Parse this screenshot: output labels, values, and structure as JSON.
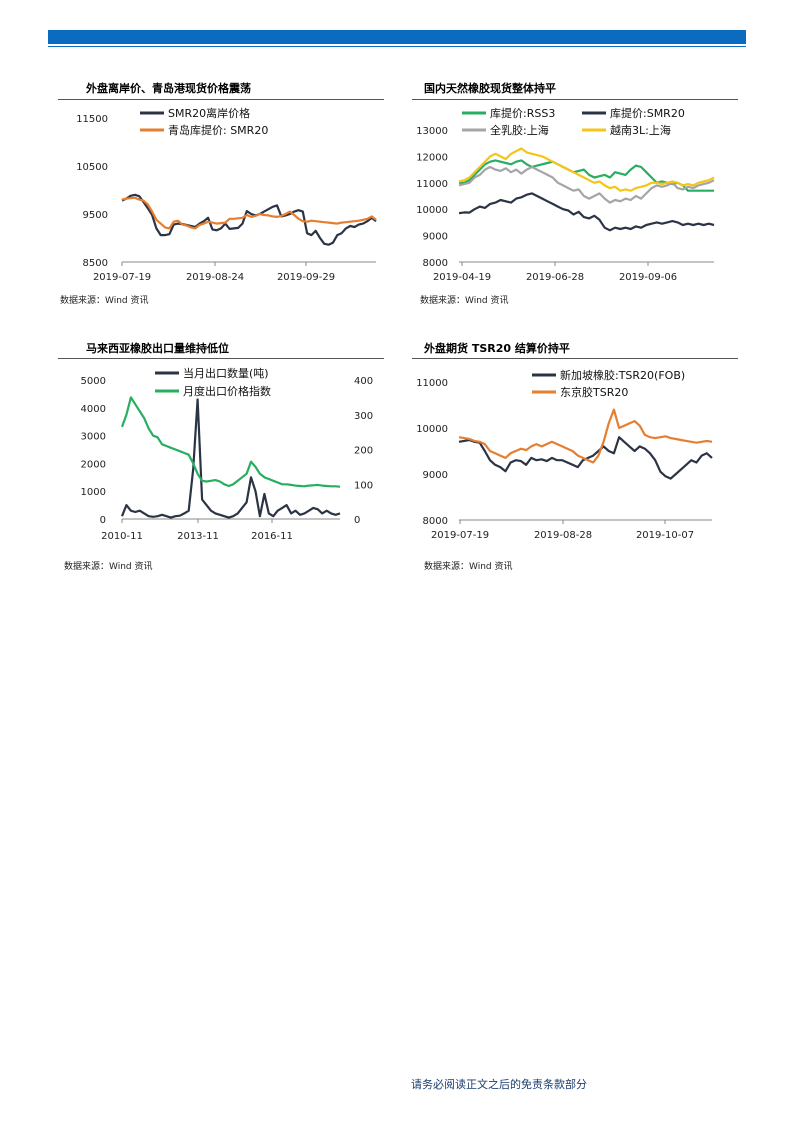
{
  "footer": "请务必阅读正文之后的免责条款部分",
  "panels": [
    {
      "title": "外盘离岸价、青岛港现货价格震荡",
      "source": "数据来源：Wind 资讯",
      "chart_data": {
        "type": "line",
        "x_ticks": [
          "2019-07-19",
          "2019-08-24",
          "2019-09-29"
        ],
        "ylim": [
          8500,
          11500
        ],
        "y_ticks": [
          8500,
          9500,
          10500,
          11500
        ],
        "legend_position": "top-left",
        "series": [
          {
            "name": "SMR20离岸价格",
            "color": "#2b3445",
            "values": [
              9780,
              9820,
              9880,
              9900,
              9870,
              9750,
              9620,
              9480,
              9200,
              9060,
              9060,
              9080,
              9280,
              9300,
              9290,
              9270,
              9250,
              9230,
              9300,
              9350,
              9420,
              9180,
              9160,
              9200,
              9300,
              9190,
              9200,
              9210,
              9300,
              9560,
              9500,
              9470,
              9500,
              9550,
              9600,
              9650,
              9680,
              9450,
              9470,
              9500,
              9550,
              9580,
              9550,
              9100,
              9060,
              9150,
              9000,
              8880,
              8860,
              8900,
              9060,
              9100,
              9200,
              9250,
              9230,
              9280,
              9300,
              9350,
              9420,
              9350
            ]
          },
          {
            "name": "青岛库提价: SMR20",
            "color": "#e67e30",
            "values": [
              9800,
              9820,
              9830,
              9840,
              9800,
              9780,
              9700,
              9550,
              9380,
              9300,
              9220,
              9200,
              9340,
              9360,
              9280,
              9260,
              9220,
              9200,
              9270,
              9300,
              9340,
              9320,
              9300,
              9310,
              9320,
              9400,
              9400,
              9410,
              9420,
              9480,
              9440,
              9460,
              9500,
              9480,
              9470,
              9450,
              9440,
              9460,
              9500,
              9550,
              9480,
              9400,
              9350,
              9340,
              9360,
              9350,
              9340,
              9330,
              9320,
              9310,
              9300,
              9320,
              9330,
              9340,
              9350,
              9360,
              9380,
              9400,
              9450,
              9380
            ]
          }
        ]
      }
    },
    {
      "title": "国内天然橡胶现货整体持平",
      "source": "数据来源：Wind 资讯",
      "chart_data": {
        "type": "line",
        "x_ticks": [
          "2019-04-19",
          "2019-06-28",
          "2019-09-06"
        ],
        "ylim": [
          8000,
          13000
        ],
        "y_ticks": [
          8000,
          9000,
          10000,
          11000,
          12000,
          13000
        ],
        "legend_position": "top",
        "series": [
          {
            "name": "库提价:RSS3",
            "color": "#27ae60",
            "values": [
              11000,
              11000,
              11100,
              11300,
              11500,
              11700,
              11800,
              11850,
              11800,
              11750,
              11700,
              11800,
              11850,
              11700,
              11600,
              11650,
              11700,
              11750,
              11800,
              11700,
              11600,
              11500,
              11400,
              11450,
              11500,
              11300,
              11200,
              11250,
              11300,
              11200,
              11400,
              11350,
              11300,
              11500,
              11650,
              11600,
              11400,
              11200,
              11000,
              11050,
              11000,
              10950,
              11000,
              10900,
              10700,
              10700,
              10700,
              10700,
              10700,
              10700
            ]
          },
          {
            "name": "库提价:SMR20",
            "color": "#2b3445",
            "values": [
              9850,
              9880,
              9870,
              10000,
              10100,
              10050,
              10200,
              10250,
              10350,
              10300,
              10250,
              10400,
              10450,
              10550,
              10600,
              10500,
              10400,
              10300,
              10200,
              10100,
              10000,
              9950,
              9800,
              9900,
              9700,
              9650,
              9750,
              9600,
              9300,
              9200,
              9300,
              9250,
              9300,
              9250,
              9350,
              9300,
              9400,
              9450,
              9500,
              9450,
              9500,
              9550,
              9500,
              9400,
              9450,
              9400,
              9450,
              9400,
              9450,
              9400
            ]
          },
          {
            "name": "全乳胶:上海",
            "color": "#a5a5a5",
            "values": [
              10900,
              10950,
              11000,
              11200,
              11300,
              11500,
              11600,
              11500,
              11450,
              11550,
              11400,
              11500,
              11350,
              11500,
              11600,
              11500,
              11400,
              11300,
              11200,
              11000,
              10900,
              10800,
              10700,
              10750,
              10500,
              10400,
              10500,
              10600,
              10400,
              10250,
              10350,
              10300,
              10400,
              10350,
              10500,
              10400,
              10600,
              10800,
              10900,
              10850,
              10900,
              11000,
              10800,
              10750,
              10850,
              10800,
              10900,
              10950,
              11000,
              11100
            ]
          },
          {
            "name": "越南3L:上海",
            "color": "#f5c518",
            "values": [
              11050,
              11100,
              11200,
              11400,
              11600,
              11800,
              12000,
              12100,
              12000,
              11900,
              12100,
              12200,
              12300,
              12150,
              12100,
              12050,
              12000,
              11900,
              11800,
              11700,
              11600,
              11500,
              11400,
              11300,
              11200,
              11100,
              11000,
              11050,
              10900,
              10800,
              10850,
              10700,
              10750,
              10700,
              10800,
              10850,
              10900,
              11000,
              11000,
              10950,
              11000,
              11050,
              11000,
              10900,
              10950,
              10900,
              11000,
              11050,
              11100,
              11200
            ]
          }
        ]
      }
    },
    {
      "title": "马来西亚橡胶出口量维持低位",
      "source": "数据来源：Wind 资讯",
      "chart_data": {
        "type": "line",
        "x_ticks": [
          "2010-11",
          "2013-11",
          "2016-11"
        ],
        "ylim": [
          0,
          5000
        ],
        "y_ticks": [
          0,
          1000,
          2000,
          3000,
          4000,
          5000
        ],
        "y2lim": [
          0,
          400
        ],
        "y2_ticks": [
          0,
          100,
          200,
          300,
          400
        ],
        "legend_position": "top",
        "series": [
          {
            "name": "当月出口数量(吨)",
            "color": "#2b3445",
            "axis": "left",
            "values": [
              100,
              500,
              300,
              250,
              300,
              200,
              100,
              80,
              100,
              150,
              100,
              50,
              100,
              120,
              200,
              300,
              1800,
              4300,
              700,
              500,
              300,
              200,
              150,
              100,
              50,
              100,
              200,
              400,
              600,
              1500,
              1000,
              100,
              900,
              200,
              100,
              300,
              400,
              500,
              200,
              300,
              150,
              200,
              300,
              400,
              350,
              200,
              300,
              200,
              150,
              200
            ]
          },
          {
            "name": "月度出口价格指数",
            "color": "#27ae60",
            "axis": "right",
            "values": [
              265,
              300,
              350,
              330,
              310,
              290,
              260,
              240,
              235,
              215,
              210,
              205,
              200,
              195,
              190,
              185,
              160,
              130,
              110,
              108,
              110,
              112,
              108,
              100,
              95,
              100,
              110,
              120,
              130,
              165,
              150,
              130,
              120,
              115,
              110,
              105,
              100,
              100,
              98,
              96,
              95,
              94,
              96,
              97,
              98,
              96,
              95,
              94,
              94,
              93
            ]
          }
        ]
      }
    },
    {
      "title": "外盘期货 TSR20 结算价持平",
      "source": "数据来源：Wind 资讯",
      "chart_data": {
        "type": "line",
        "x_ticks": [
          "2019-07-19",
          "2019-08-28",
          "2019-10-07"
        ],
        "ylim": [
          8000,
          11000
        ],
        "y_ticks": [
          8000,
          9000,
          10000,
          11000
        ],
        "legend_position": "top-right",
        "series": [
          {
            "name": "新加坡橡胶:TSR20(FOB)",
            "color": "#2b3445",
            "values": [
              9700,
              9720,
              9740,
              9700,
              9680,
              9500,
              9300,
              9200,
              9150,
              9060,
              9250,
              9300,
              9280,
              9200,
              9350,
              9300,
              9320,
              9280,
              9350,
              9300,
              9300,
              9250,
              9200,
              9150,
              9300,
              9350,
              9400,
              9500,
              9600,
              9500,
              9450,
              9800,
              9700,
              9600,
              9500,
              9600,
              9550,
              9450,
              9300,
              9050,
              8950,
              8900,
              9000,
              9100,
              9200,
              9300,
              9250,
              9400,
              9450,
              9350
            ]
          },
          {
            "name": "东京胶TSR20",
            "color": "#e67e30",
            "values": [
              9800,
              9780,
              9760,
              9720,
              9700,
              9650,
              9500,
              9450,
              9400,
              9350,
              9450,
              9500,
              9550,
              9520,
              9600,
              9650,
              9600,
              9650,
              9700,
              9650,
              9600,
              9550,
              9500,
              9400,
              9350,
              9300,
              9250,
              9400,
              9700,
              10100,
              10400,
              10000,
              10050,
              10100,
              10150,
              10050,
              9850,
              9800,
              9780,
              9800,
              9820,
              9780,
              9760,
              9740,
              9720,
              9700,
              9680,
              9700,
              9720,
              9700
            ]
          }
        ]
      }
    }
  ]
}
